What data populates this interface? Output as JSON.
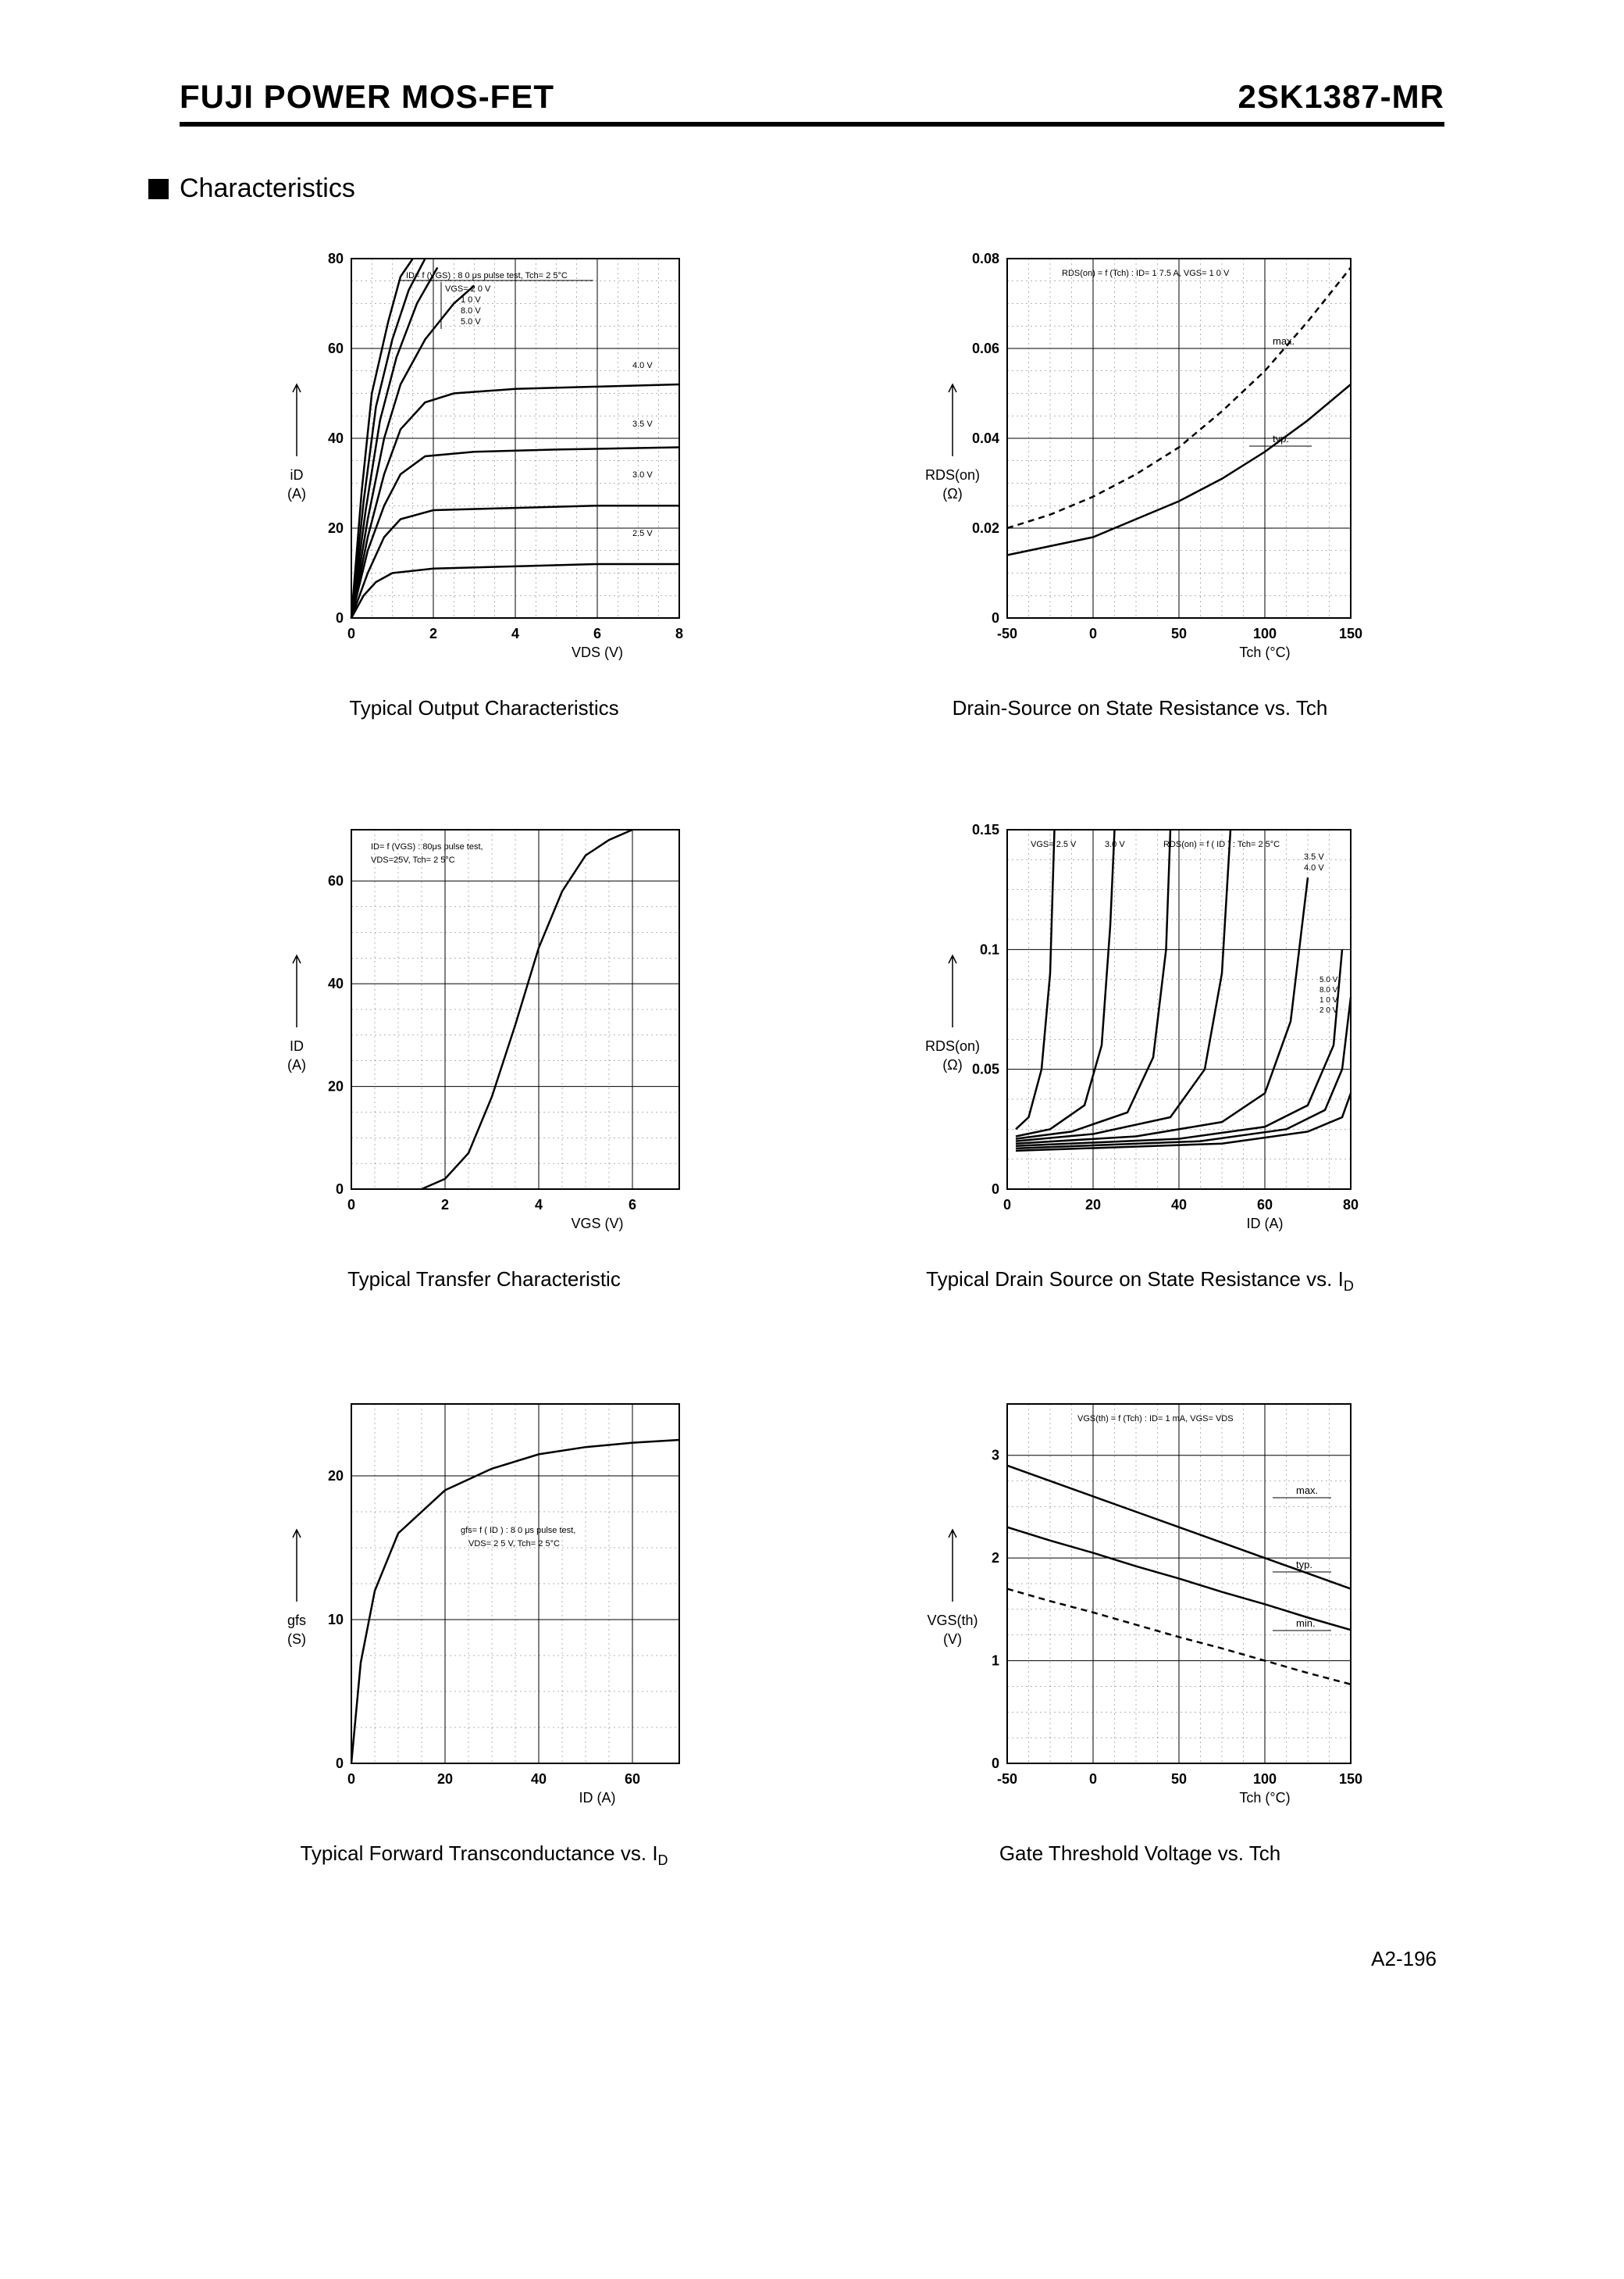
{
  "header": {
    "left": "FUJI POWER MOS-FET",
    "right": "2SK1387-MR"
  },
  "section_title": "Characteristics",
  "footer": "A2-196",
  "charts": {
    "output": {
      "type": "line",
      "title": "Typical Output Characteristics",
      "xlabel": "VDS (V)",
      "ylabel_lines": [
        "iD",
        "(A)"
      ],
      "xlim": [
        0,
        8
      ],
      "ylim": [
        0,
        80
      ],
      "xticks": [
        0,
        2,
        4,
        6,
        8
      ],
      "yticks": [
        0,
        20,
        40,
        60,
        80
      ],
      "annotation": "ID= f (VGS) : 8 0 μs pulse test, Tch= 2 5°C",
      "series_labels_header": "VGS= 2 0 V",
      "series_labels": [
        "1 0 V",
        "8.0 V",
        "5.0 V",
        "4.0 V",
        "3.5 V",
        "3.0 V",
        "2.5 V"
      ],
      "curves": [
        {
          "label": "2.5 V",
          "pts": [
            [
              0,
              0
            ],
            [
              0.3,
              5
            ],
            [
              0.6,
              8
            ],
            [
              1.0,
              10
            ],
            [
              2,
              11
            ],
            [
              4,
              11.5
            ],
            [
              6,
              12
            ],
            [
              8,
              12
            ]
          ]
        },
        {
          "label": "3.0 V",
          "pts": [
            [
              0,
              0
            ],
            [
              0.4,
              10
            ],
            [
              0.8,
              18
            ],
            [
              1.2,
              22
            ],
            [
              2,
              24
            ],
            [
              4,
              24.5
            ],
            [
              6,
              25
            ],
            [
              8,
              25
            ]
          ]
        },
        {
          "label": "3.5 V",
          "pts": [
            [
              0,
              0
            ],
            [
              0.4,
              15
            ],
            [
              0.8,
              25
            ],
            [
              1.2,
              32
            ],
            [
              1.8,
              36
            ],
            [
              3,
              37
            ],
            [
              5,
              37.5
            ],
            [
              8,
              38
            ]
          ]
        },
        {
          "label": "4.0 V",
          "pts": [
            [
              0,
              0
            ],
            [
              0.4,
              18
            ],
            [
              0.8,
              32
            ],
            [
              1.2,
              42
            ],
            [
              1.8,
              48
            ],
            [
              2.5,
              50
            ],
            [
              4,
              51
            ],
            [
              6,
              51.5
            ],
            [
              8,
              52
            ]
          ]
        },
        {
          "label": "5.0 V",
          "pts": [
            [
              0,
              0
            ],
            [
              0.4,
              22
            ],
            [
              0.8,
              40
            ],
            [
              1.2,
              52
            ],
            [
              1.8,
              62
            ],
            [
              2.5,
              70
            ],
            [
              3,
              74
            ]
          ]
        },
        {
          "label": "8.0 V",
          "pts": [
            [
              0,
              0
            ],
            [
              0.35,
              24
            ],
            [
              0.7,
              44
            ],
            [
              1.1,
              58
            ],
            [
              1.6,
              70
            ],
            [
              2.1,
              78
            ]
          ]
        },
        {
          "label": "10 V",
          "pts": [
            [
              0,
              0
            ],
            [
              0.3,
              26
            ],
            [
              0.6,
              47
            ],
            [
              1.0,
              62
            ],
            [
              1.4,
              73
            ],
            [
              1.8,
              80
            ]
          ]
        },
        {
          "label": "20 V",
          "pts": [
            [
              0,
              0
            ],
            [
              0.25,
              28
            ],
            [
              0.5,
              50
            ],
            [
              0.9,
              66
            ],
            [
              1.2,
              76
            ],
            [
              1.5,
              80
            ]
          ]
        }
      ]
    },
    "rds_tch": {
      "type": "line",
      "title": "Drain-Source on State Resistance vs. Tch",
      "xlabel": "Tch (°C)",
      "ylabel_lines": [
        "RDS(on)",
        "(Ω)"
      ],
      "xlim": [
        -50,
        150
      ],
      "ylim": [
        0,
        0.08
      ],
      "xticks": [
        -50,
        0,
        50,
        100,
        150
      ],
      "yticks": [
        0,
        0.02,
        0.04,
        0.06,
        0.08
      ],
      "annotation": "RDS(on) = f (Tch) : ID= 1 7.5 A,  VGS= 1 0 V",
      "series_labels": [
        "max.",
        "typ."
      ],
      "curves": [
        {
          "label": "typ",
          "pts": [
            [
              -50,
              0.014
            ],
            [
              -25,
              0.016
            ],
            [
              0,
              0.018
            ],
            [
              25,
              0.022
            ],
            [
              50,
              0.026
            ],
            [
              75,
              0.031
            ],
            [
              100,
              0.037
            ],
            [
              125,
              0.044
            ],
            [
              150,
              0.052
            ]
          ]
        },
        {
          "label": "max",
          "dashed": true,
          "pts": [
            [
              -50,
              0.02
            ],
            [
              -25,
              0.023
            ],
            [
              0,
              0.027
            ],
            [
              25,
              0.032
            ],
            [
              50,
              0.038
            ],
            [
              75,
              0.046
            ],
            [
              100,
              0.055
            ],
            [
              125,
              0.066
            ],
            [
              150,
              0.078
            ]
          ]
        }
      ]
    },
    "transfer": {
      "type": "line",
      "title": "Typical Transfer Characteristic",
      "xlabel": "VGS (V)",
      "ylabel_lines": [
        "ID",
        "(A)"
      ],
      "xlim": [
        0,
        7
      ],
      "ylim": [
        0,
        70
      ],
      "xticks": [
        0,
        2,
        4,
        6
      ],
      "yticks": [
        0,
        20,
        40,
        60
      ],
      "annotation": "ID= f (VGS) : 80μs pulse test,",
      "annotation2": "VDS=25V, Tch= 2 5°C",
      "curves": [
        {
          "pts": [
            [
              1.5,
              0
            ],
            [
              2.0,
              2
            ],
            [
              2.5,
              7
            ],
            [
              3.0,
              18
            ],
            [
              3.5,
              32
            ],
            [
              4.0,
              47
            ],
            [
              4.5,
              58
            ],
            [
              5.0,
              65
            ],
            [
              5.5,
              68
            ],
            [
              6.0,
              70
            ]
          ]
        }
      ]
    },
    "rds_id": {
      "type": "line",
      "title_html": "Typical Drain Source on State Resistance vs. ID",
      "title": "Typical Drain Source on State Resistance vs. I",
      "title_sub": "D",
      "xlabel": "ID (A)",
      "ylabel_lines": [
        "RDS(on)",
        "(Ω)"
      ],
      "xlim": [
        0,
        80
      ],
      "ylim": [
        0,
        0.15
      ],
      "xticks": [
        0,
        20,
        40,
        60,
        80
      ],
      "yticks": [
        0,
        0.05,
        0.1,
        0.15
      ],
      "annotation": "RDS(on) = f ( ID ) : Tch= 2 5°C",
      "series_labels_header": "VGS= 2.5 V",
      "series_labels": [
        "3.0 V",
        "3.5 V",
        "4.0 V",
        "5.0 V",
        "8.0 V",
        "1 0 V",
        "2 0 V"
      ],
      "curves": [
        {
          "label": "2.5 V",
          "pts": [
            [
              2,
              0.025
            ],
            [
              5,
              0.03
            ],
            [
              8,
              0.05
            ],
            [
              10,
              0.09
            ],
            [
              11,
              0.15
            ]
          ]
        },
        {
          "label": "3.0 V",
          "pts": [
            [
              2,
              0.022
            ],
            [
              10,
              0.025
            ],
            [
              18,
              0.035
            ],
            [
              22,
              0.06
            ],
            [
              24,
              0.11
            ],
            [
              25,
              0.15
            ]
          ]
        },
        {
          "label": "3.5 V",
          "pts": [
            [
              2,
              0.021
            ],
            [
              15,
              0.024
            ],
            [
              28,
              0.032
            ],
            [
              34,
              0.055
            ],
            [
              37,
              0.1
            ],
            [
              38,
              0.15
            ]
          ]
        },
        {
          "label": "4.0 V",
          "pts": [
            [
              2,
              0.02
            ],
            [
              20,
              0.023
            ],
            [
              38,
              0.03
            ],
            [
              46,
              0.05
            ],
            [
              50,
              0.09
            ],
            [
              52,
              0.15
            ]
          ]
        },
        {
          "label": "5.0 V",
          "pts": [
            [
              2,
              0.019
            ],
            [
              30,
              0.022
            ],
            [
              50,
              0.028
            ],
            [
              60,
              0.04
            ],
            [
              66,
              0.07
            ],
            [
              70,
              0.13
            ]
          ]
        },
        {
          "label": "8.0 V",
          "pts": [
            [
              2,
              0.018
            ],
            [
              40,
              0.021
            ],
            [
              60,
              0.026
            ],
            [
              70,
              0.035
            ],
            [
              76,
              0.06
            ],
            [
              78,
              0.1
            ]
          ]
        },
        {
          "label": "10 V",
          "pts": [
            [
              2,
              0.017
            ],
            [
              45,
              0.02
            ],
            [
              65,
              0.025
            ],
            [
              74,
              0.033
            ],
            [
              78,
              0.05
            ],
            [
              80,
              0.08
            ]
          ]
        },
        {
          "label": "20 V",
          "pts": [
            [
              2,
              0.016
            ],
            [
              50,
              0.019
            ],
            [
              70,
              0.024
            ],
            [
              78,
              0.03
            ],
            [
              80,
              0.04
            ]
          ]
        }
      ]
    },
    "gfs": {
      "type": "line",
      "title": "Typical Forward Transconductance vs. I",
      "title_sub": "D",
      "xlabel": "ID (A)",
      "ylabel_lines": [
        "gfs",
        "(S)"
      ],
      "xlim": [
        0,
        70
      ],
      "ylim": [
        0,
        25
      ],
      "xticks": [
        0,
        20,
        40,
        60
      ],
      "yticks": [
        0,
        10,
        20
      ],
      "annotation": "gfs= f ( ID ) : 8 0 μs pulse test,",
      "annotation2": "VDS= 2 5 V, Tch= 2 5°C",
      "curves": [
        {
          "pts": [
            [
              0,
              0
            ],
            [
              2,
              7
            ],
            [
              5,
              12
            ],
            [
              10,
              16
            ],
            [
              20,
              19
            ],
            [
              30,
              20.5
            ],
            [
              40,
              21.5
            ],
            [
              50,
              22
            ],
            [
              60,
              22.3
            ],
            [
              70,
              22.5
            ]
          ]
        }
      ]
    },
    "vgsth": {
      "type": "line",
      "title": "Gate Threshold Voltage vs. Tch",
      "xlabel": "Tch (°C)",
      "ylabel_lines": [
        "VGS(th)",
        "(V)"
      ],
      "xlim": [
        -50,
        150
      ],
      "ylim": [
        0,
        3.5
      ],
      "xticks": [
        -50,
        0,
        50,
        100,
        150
      ],
      "yticks": [
        0,
        1.0,
        2.0,
        3.0
      ],
      "annotation": "VGS(th) = f (Tch) : ID= 1 mA,  VGS= VDS",
      "series_labels": [
        "max.",
        "typ.",
        "min."
      ],
      "curves": [
        {
          "label": "max",
          "pts": [
            [
              -50,
              2.9
            ],
            [
              -25,
              2.75
            ],
            [
              0,
              2.6
            ],
            [
              25,
              2.45
            ],
            [
              50,
              2.3
            ],
            [
              75,
              2.15
            ],
            [
              100,
              2.0
            ],
            [
              125,
              1.85
            ],
            [
              150,
              1.7
            ]
          ]
        },
        {
          "label": "typ",
          "pts": [
            [
              -50,
              2.3
            ],
            [
              -25,
              2.17
            ],
            [
              0,
              2.05
            ],
            [
              25,
              1.92
            ],
            [
              50,
              1.8
            ],
            [
              75,
              1.67
            ],
            [
              100,
              1.55
            ],
            [
              125,
              1.42
            ],
            [
              150,
              1.3
            ]
          ]
        },
        {
          "label": "min",
          "dashed": true,
          "pts": [
            [
              -50,
              1.7
            ],
            [
              -25,
              1.58
            ],
            [
              0,
              1.47
            ],
            [
              25,
              1.35
            ],
            [
              50,
              1.23
            ],
            [
              75,
              1.12
            ],
            [
              100,
              1.0
            ],
            [
              125,
              0.88
            ],
            [
              150,
              0.77
            ]
          ]
        }
      ]
    }
  },
  "style": {
    "axis_color": "#000000",
    "grid_color": "#000000",
    "curve_color": "#000000",
    "curve_width": 2.5,
    "border_width": 2,
    "tick_fontsize": 18,
    "label_fontsize": 18,
    "annotation_fontsize": 12
  }
}
